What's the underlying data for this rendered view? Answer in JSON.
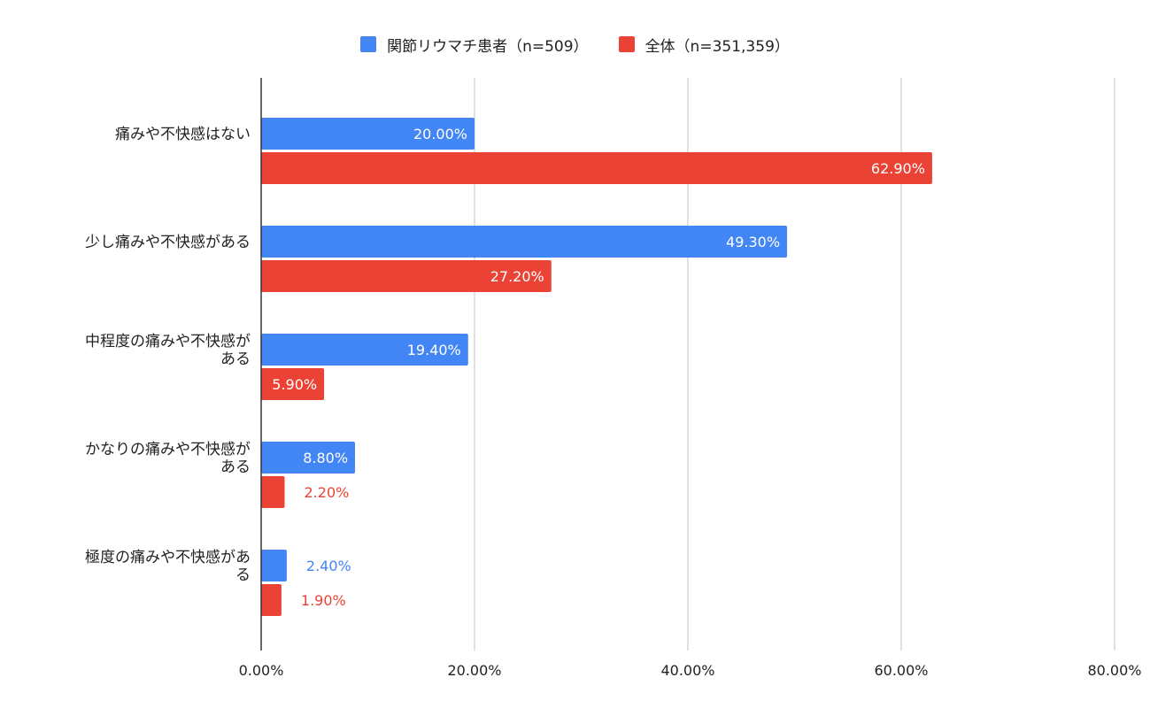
{
  "legend": {
    "series_a": "関節リウマチ患者（n=509）",
    "series_b": "全体（n=351,359）"
  },
  "colors": {
    "series_a": "#4285f4",
    "series_b": "#ea4335",
    "grid": "#cccccc",
    "axis": "#333333"
  },
  "chart_data": {
    "type": "bar",
    "orientation": "horizontal",
    "categories": [
      [
        "痛みや不快感はない"
      ],
      [
        "少し痛みや不快感がある"
      ],
      [
        "中程度の痛みや不快感が",
        "ある"
      ],
      [
        "かなりの痛みや不快感が",
        "ある"
      ],
      [
        "極度の痛みや不快感があ",
        "る"
      ]
    ],
    "series": [
      {
        "name": "関節リウマチ患者（n=509）",
        "values": [
          20.0,
          49.3,
          19.4,
          8.8,
          2.4
        ],
        "labels": [
          "20.00%",
          "49.30%",
          "19.40%",
          "8.80%",
          "2.40%"
        ]
      },
      {
        "name": "全体（n=351,359）",
        "values": [
          62.9,
          27.2,
          5.9,
          2.2,
          1.9
        ],
        "labels": [
          "62.90%",
          "27.20%",
          "5.90%",
          "2.20%",
          "1.90%"
        ]
      }
    ],
    "xlim": [
      0,
      80
    ],
    "xticks": [
      0,
      20,
      40,
      60,
      80
    ],
    "xtick_labels": [
      "0.00%",
      "20.00%",
      "40.00%",
      "60.00%",
      "80.00%"
    ],
    "legend_position": "top",
    "grid": true
  }
}
